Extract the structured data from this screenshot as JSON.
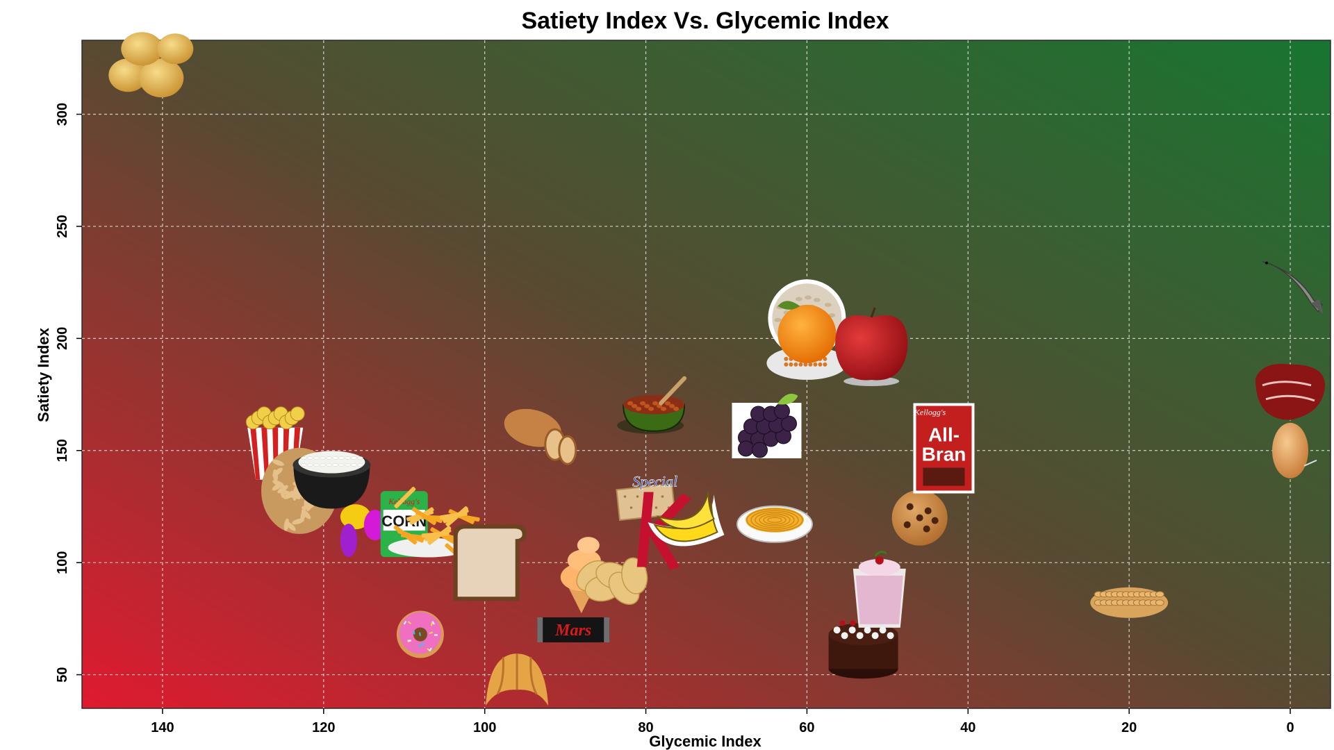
{
  "chart_data": {
    "type": "scatter",
    "title": "Satiety Index Vs. Glycemic Index",
    "xlabel": "Glycemic Index",
    "ylabel": "Satiety Index",
    "xlim": [
      150,
      -5
    ],
    "ylim": [
      35,
      333
    ],
    "x_reversed": true,
    "x_ticks": [
      140,
      120,
      100,
      80,
      60,
      40,
      20,
      0
    ],
    "y_ticks": [
      50,
      100,
      150,
      200,
      250,
      300
    ],
    "grid": true,
    "background_gradient": {
      "left": "#e01a2f",
      "right": "#187531"
    },
    "points": [
      {
        "name": "potatoes",
        "x": 141,
        "y": 323
      },
      {
        "name": "popcorn",
        "x": 126,
        "y": 154
      },
      {
        "name": "brown rice",
        "x": 123,
        "y": 132
      },
      {
        "name": "white rice",
        "x": 119,
        "y": 138
      },
      {
        "name": "jelly beans",
        "x": 115,
        "y": 118
      },
      {
        "name": "cornflakes",
        "x": 110,
        "y": 118
      },
      {
        "name": "french fries",
        "x": 107,
        "y": 116
      },
      {
        "name": "white bread",
        "x": 100,
        "y": 100
      },
      {
        "name": "doughnut",
        "x": 108,
        "y": 68
      },
      {
        "name": "croissant",
        "x": 96,
        "y": 47
      },
      {
        "name": "wholemeal bread",
        "x": 93,
        "y": 157
      },
      {
        "name": "ice cream",
        "x": 88,
        "y": 96
      },
      {
        "name": "mars bar",
        "x": 89,
        "y": 70
      },
      {
        "name": "crackers",
        "x": 80,
        "y": 127
      },
      {
        "name": "potato chips",
        "x": 84,
        "y": 91
      },
      {
        "name": "special k",
        "x": 78,
        "y": 116
      },
      {
        "name": "bananas",
        "x": 75,
        "y": 118
      },
      {
        "name": "baked beans",
        "x": 79,
        "y": 168
      },
      {
        "name": "grapes",
        "x": 65,
        "y": 162
      },
      {
        "name": "porridge",
        "x": 60,
        "y": 209
      },
      {
        "name": "lentils",
        "x": 60,
        "y": 189
      },
      {
        "name": "oranges",
        "x": 60,
        "y": 202
      },
      {
        "name": "apples",
        "x": 52,
        "y": 197
      },
      {
        "name": "pasta",
        "x": 64,
        "y": 119
      },
      {
        "name": "cake",
        "x": 53,
        "y": 65
      },
      {
        "name": "yogurt",
        "x": 51,
        "y": 88
      },
      {
        "name": "cookies",
        "x": 46,
        "y": 120
      },
      {
        "name": "all-bran",
        "x": 43,
        "y": 151
      },
      {
        "name": "peanuts",
        "x": 20,
        "y": 84
      },
      {
        "name": "fish",
        "x": 0,
        "y": 225
      },
      {
        "name": "beef",
        "x": 0,
        "y": 176
      },
      {
        "name": "eggs",
        "x": 0,
        "y": 150
      }
    ]
  },
  "icons": {
    "allbran_top": "All-",
    "allbran_bottom": "Bran",
    "allbran_brand": "Kellogg's",
    "cornflakes_text": "CORN",
    "cornflakes_brand": "Kellogg's",
    "specialk_text": "Special",
    "mars_text": "Mars"
  }
}
